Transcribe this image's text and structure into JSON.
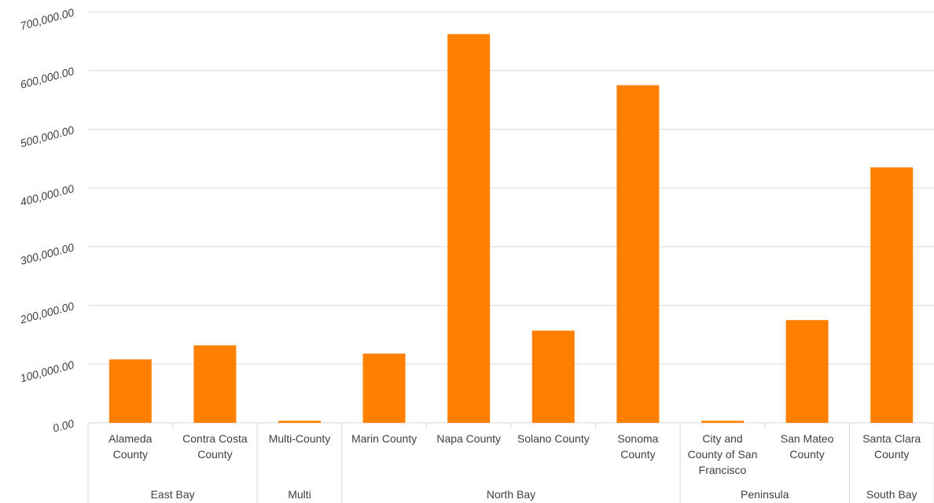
{
  "chart_data": {
    "type": "bar",
    "title": "",
    "xlabel": "",
    "ylabel": "",
    "ylim": [
      0,
      700000
    ],
    "y_ticks": [
      0,
      100000,
      200000,
      300000,
      400000,
      500000,
      600000,
      700000
    ],
    "y_tick_labels": [
      "0.00",
      "100,000.00",
      "200,000.00",
      "300,000.00",
      "400,000.00",
      "500,000.00",
      "600,000.00",
      "700,000.00"
    ],
    "grid": true,
    "bar_color": "#FF8000",
    "gridline_color": "#D9D9D9",
    "categories": [
      {
        "label_lines": [
          "Alameda",
          "County"
        ],
        "value": 108000
      },
      {
        "label_lines": [
          "Contra Costa",
          "County"
        ],
        "value": 132000
      },
      {
        "label_lines": [
          "Multi-County"
        ],
        "value": 3500
      },
      {
        "label_lines": [
          "Marin County"
        ],
        "value": 118000
      },
      {
        "label_lines": [
          "Napa County"
        ],
        "value": 662000
      },
      {
        "label_lines": [
          "Solano County"
        ],
        "value": 157000
      },
      {
        "label_lines": [
          "Sonoma",
          "County"
        ],
        "value": 575000
      },
      {
        "label_lines": [
          "City and",
          "County of San",
          "Francisco"
        ],
        "value": 3500
      },
      {
        "label_lines": [
          "San Mateo",
          "County"
        ],
        "value": 175000
      },
      {
        "label_lines": [
          "Santa Clara",
          "County"
        ],
        "value": 435000
      }
    ],
    "groups": [
      {
        "label": "East Bay",
        "count": 2
      },
      {
        "label": "Multi",
        "count": 1
      },
      {
        "label": "North Bay",
        "count": 4
      },
      {
        "label": "Peninsula",
        "count": 2
      },
      {
        "label": "South Bay",
        "count": 1
      }
    ]
  }
}
